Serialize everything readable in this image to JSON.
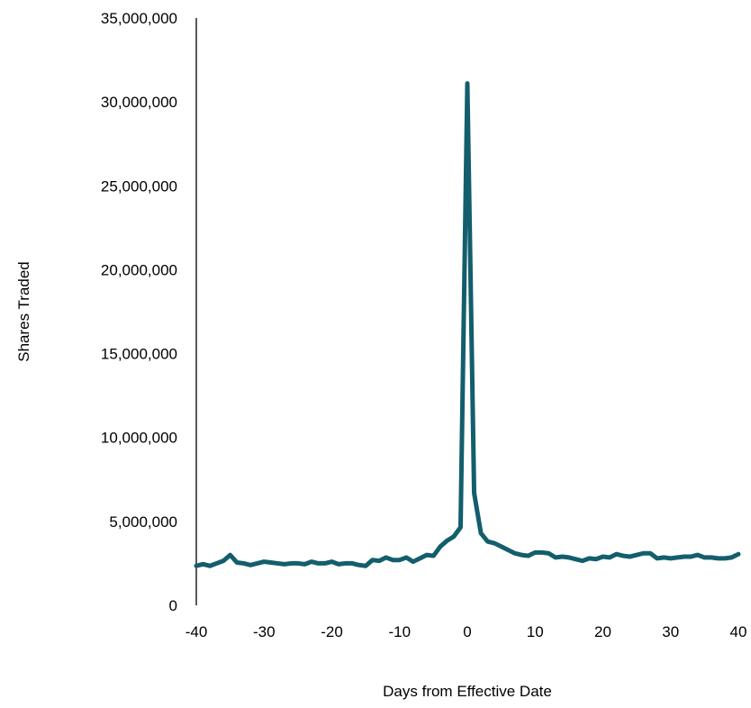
{
  "chart_data": {
    "type": "line",
    "title": "",
    "xlabel": "Days from Effective Date",
    "ylabel": "Shares Traded",
    "xlim": [
      -40,
      40
    ],
    "ylim": [
      0,
      35000000
    ],
    "x_ticks": [
      -40,
      -30,
      -20,
      -10,
      0,
      10,
      20,
      30,
      40
    ],
    "x_tick_labels": [
      "-40",
      "-30",
      "-20",
      "-10",
      "0",
      "10",
      "20",
      "30",
      "40"
    ],
    "y_ticks": [
      0,
      5000000,
      10000000,
      15000000,
      20000000,
      25000000,
      30000000,
      35000000
    ],
    "y_tick_labels": [
      "0",
      "5,000,000",
      "10,000,000",
      "15,000,000",
      "20,000,000",
      "25,000,000",
      "30,000,000",
      "35,000,000"
    ],
    "grid": false,
    "legend": "none",
    "series": [
      {
        "color": "#135e6c",
        "x": [
          -40,
          -39,
          -38,
          -37,
          -36,
          -35,
          -34,
          -33,
          -32,
          -31,
          -30,
          -29,
          -28,
          -27,
          -26,
          -25,
          -24,
          -23,
          -22,
          -21,
          -20,
          -19,
          -18,
          -17,
          -16,
          -15,
          -14,
          -13,
          -12,
          -11,
          -10,
          -9,
          -8,
          -7,
          -6,
          -5,
          -4,
          -3,
          -2,
          -1,
          0,
          1,
          2,
          3,
          4,
          5,
          6,
          7,
          8,
          9,
          10,
          11,
          12,
          13,
          14,
          15,
          16,
          17,
          18,
          19,
          20,
          21,
          22,
          23,
          24,
          25,
          26,
          27,
          28,
          29,
          30,
          31,
          32,
          33,
          34,
          35,
          36,
          37,
          38,
          39,
          40
        ],
        "values": [
          2350000,
          2450000,
          2350000,
          2500000,
          2650000,
          3000000,
          2550000,
          2500000,
          2400000,
          2500000,
          2600000,
          2550000,
          2500000,
          2450000,
          2500000,
          2500000,
          2450000,
          2600000,
          2500000,
          2500000,
          2600000,
          2450000,
          2500000,
          2500000,
          2400000,
          2350000,
          2700000,
          2650000,
          2850000,
          2700000,
          2700000,
          2850000,
          2600000,
          2800000,
          3000000,
          2950000,
          3500000,
          3850000,
          4100000,
          4650000,
          31100000,
          6700000,
          4300000,
          3800000,
          3700000,
          3500000,
          3300000,
          3100000,
          3000000,
          2950000,
          3150000,
          3150000,
          3100000,
          2850000,
          2900000,
          2850000,
          2750000,
          2650000,
          2800000,
          2750000,
          2900000,
          2850000,
          3050000,
          2950000,
          2900000,
          3000000,
          3100000,
          3100000,
          2800000,
          2850000,
          2800000,
          2850000,
          2900000,
          2900000,
          3000000,
          2850000,
          2850000,
          2800000,
          2800000,
          2850000,
          3050000
        ]
      }
    ]
  }
}
